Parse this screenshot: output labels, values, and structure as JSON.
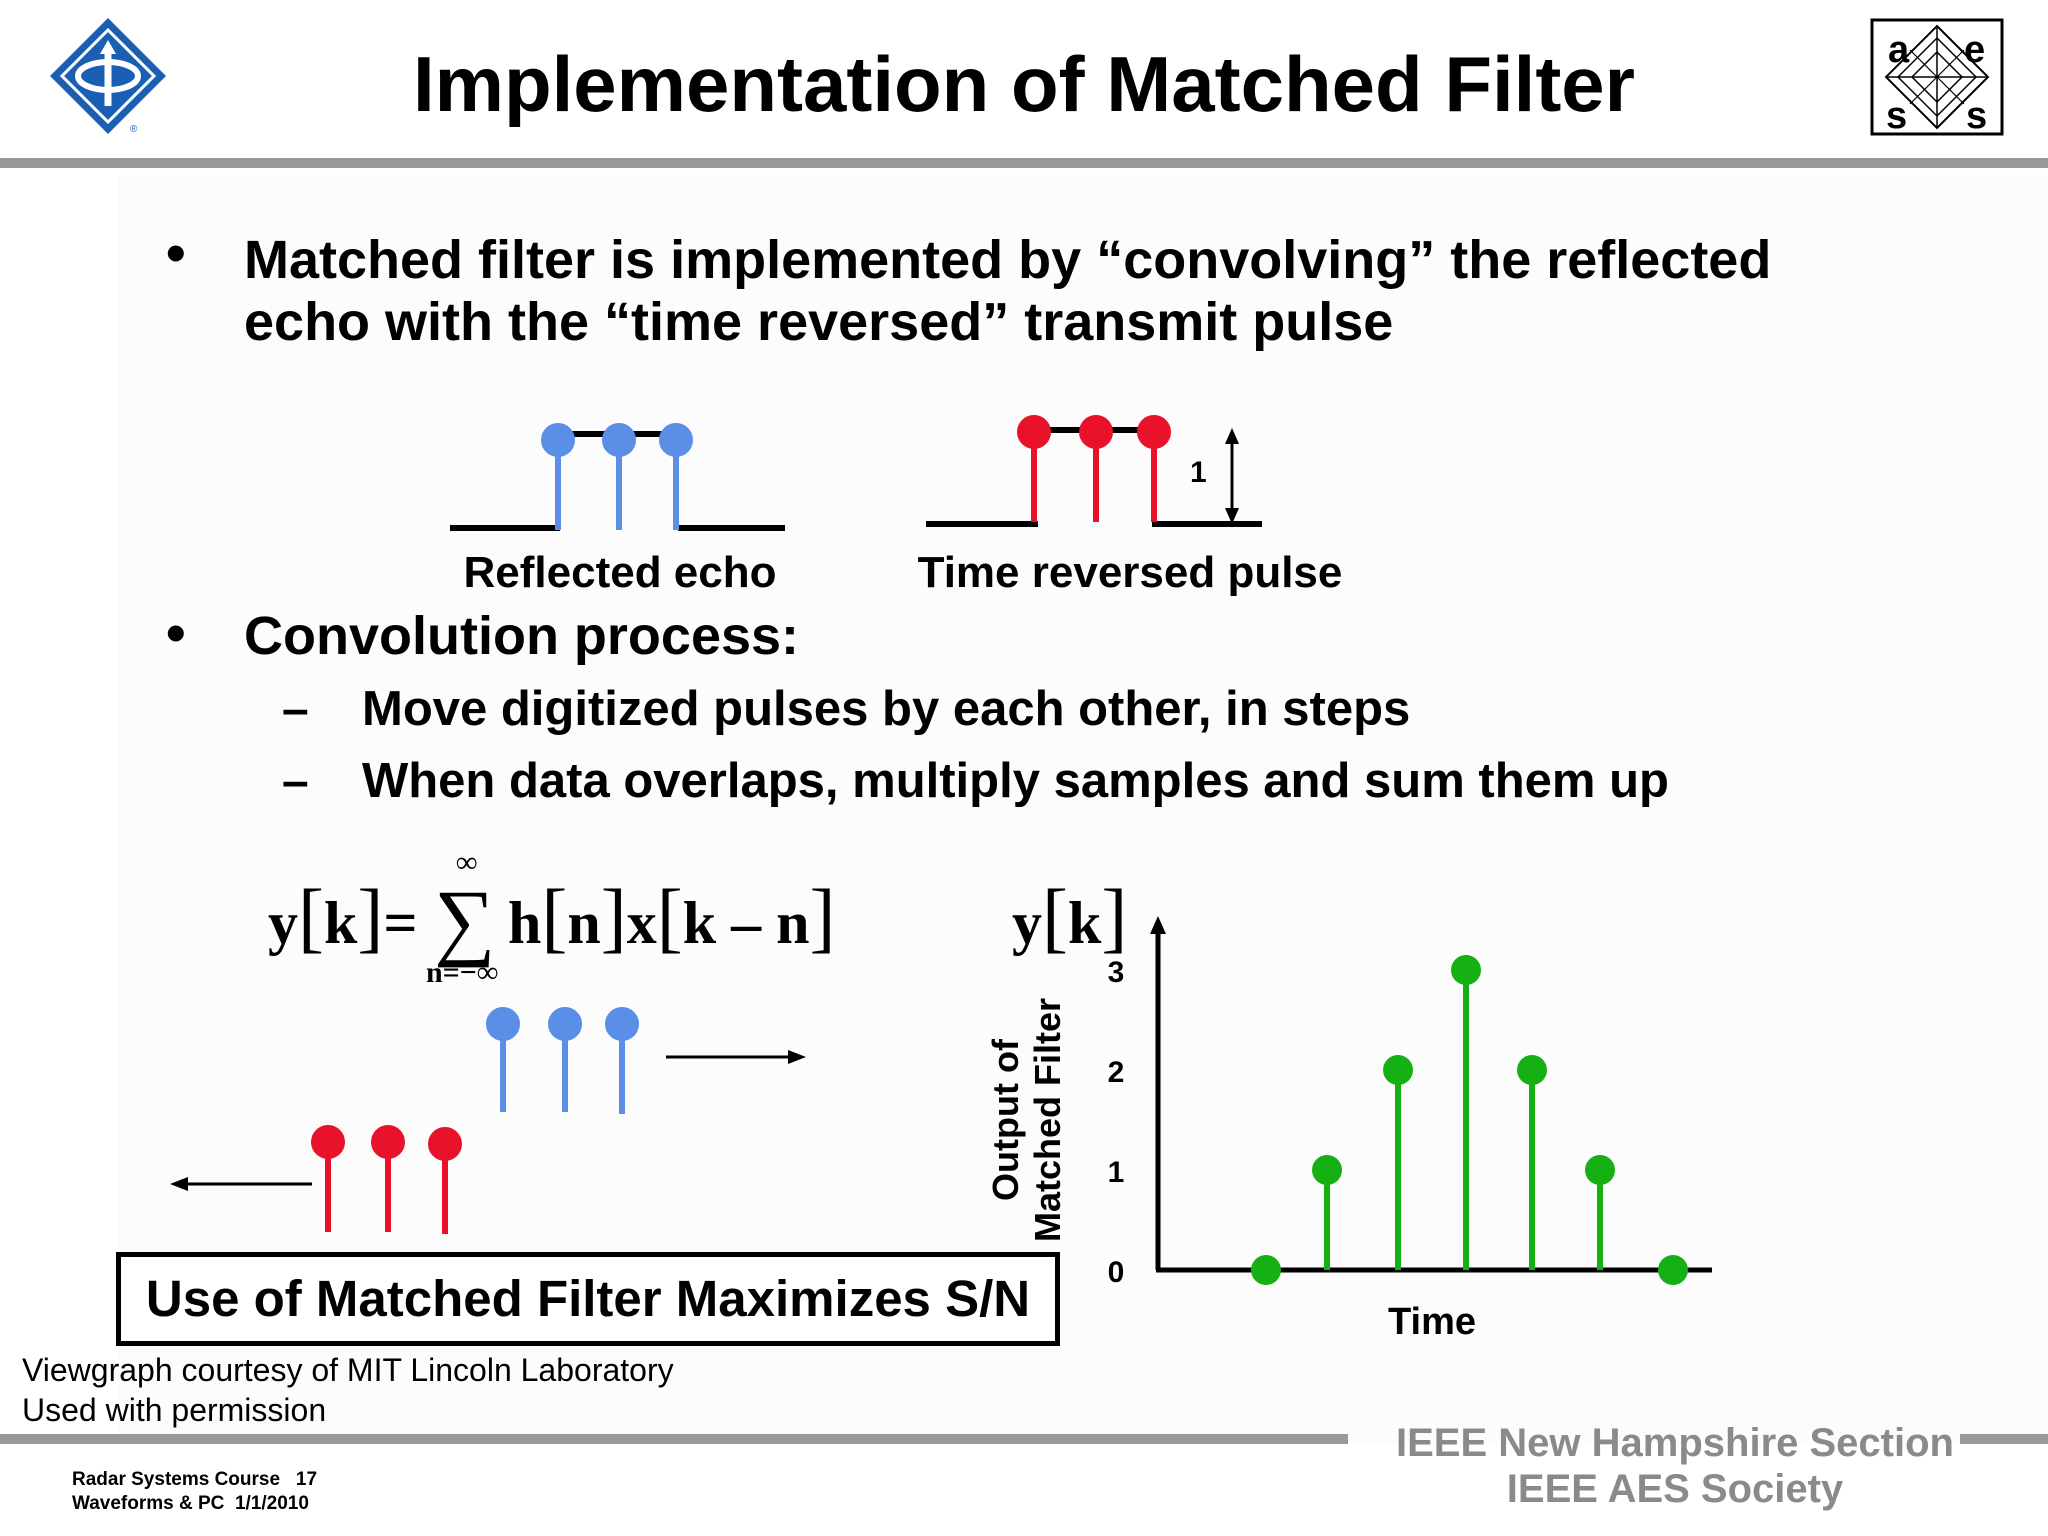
{
  "slide": {
    "title": "Implementation of Matched Filter"
  },
  "bullets": [
    {
      "lines": [
        "Matched filter is implemented by “convolving” the reflected",
        "echo with the “time reversed” transmit pulse"
      ]
    },
    {
      "lines": [
        "Convolution process:"
      ]
    }
  ],
  "sub_bullets": [
    "Move digitized pulses by  each other, in steps",
    "When data overlaps, multiply samples and sum them up"
  ],
  "dash": "–",
  "bullet_symbol": "•",
  "diagram": {
    "reflected_echo_label": "Reflected echo",
    "time_reversed_label": "Time reversed pulse",
    "amplitude_label": "1",
    "colors": {
      "echo": "#5b8ee6",
      "reversed": "#e8132b",
      "output": "#14b014"
    }
  },
  "formula": {
    "y": "y",
    "k": "k",
    "eq": "=",
    "sigma": "∑",
    "upper": "∞",
    "lower": "n=−∞",
    "h": "h",
    "n": "n",
    "x": "x",
    "kmn": "k – n"
  },
  "chart_data": {
    "type": "stem",
    "title_text": "y[k]",
    "ylabel": [
      "Output of",
      "Matched Filter"
    ],
    "xlabel": "Time",
    "yticks": [
      "0",
      "1",
      "2",
      "3"
    ],
    "ylim": [
      0,
      3.3
    ],
    "values": [
      0,
      1,
      2,
      3,
      2,
      1,
      0
    ]
  },
  "conclusion": "Use of Matched Filter Maximizes S/N",
  "credit": [
    "Viewgraph courtesy of MIT Lincoln Laboratory",
    "Used with permission"
  ],
  "footer": {
    "course": "Radar Systems Course",
    "page": "17",
    "module": "Waveforms & PC",
    "date": "1/1/2010",
    "org_line1": "IEEE New Hampshire Section",
    "org_line2": "IEEE AES Society"
  },
  "logo_right": {
    "letters": [
      "a",
      "e",
      "s",
      "s"
    ]
  }
}
